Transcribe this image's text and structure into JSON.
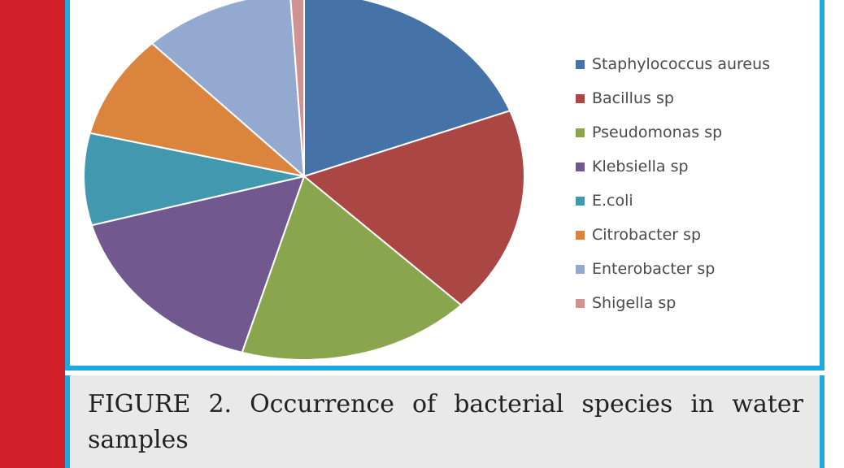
{
  "colors": {
    "left_band": "#d21f2a",
    "frame": "#1ea8e0",
    "caption_background": "#e9e9ea"
  },
  "chart_data": {
    "type": "pie",
    "title": "",
    "labels": [
      "Staphylococcus aureus",
      "Bacillus sp",
      "Pseudomonas sp",
      "Klebsiella sp",
      "E.coli",
      "Citrobacter sp",
      "Enterobacter sp",
      "Shigella sp"
    ],
    "values": [
      19,
      18,
      17,
      16,
      8,
      9,
      11,
      1
    ],
    "colors": [
      "#4573a7",
      "#aa4643",
      "#89a54e",
      "#71588f",
      "#4198af",
      "#db843d",
      "#93a9cf",
      "#d19392"
    ],
    "legend_position": "right"
  },
  "caption": {
    "text": "FIGURE 2. Occurrence of bacterial species in water samples"
  }
}
